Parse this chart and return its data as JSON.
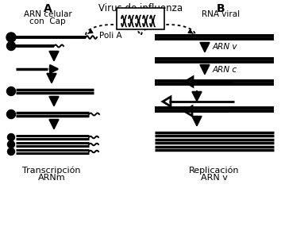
{
  "title_center": "Virus de influenza",
  "title_A": "A",
  "subtitle_A1": "ARN celular",
  "subtitle_A2": "con  Cap",
  "title_B": "B",
  "subtitle_B": "RNA viral",
  "label_poliA": "Poli A",
  "label_arnv": "ARN v",
  "label_arnc": "ARN c",
  "label_bottom_A1": "Transcripción",
  "label_bottom_A2": "ARNm",
  "label_bottom_B1": "Replicación",
  "label_bottom_B2": "ARN v",
  "bg_color": "#ffffff",
  "line_color": "#000000",
  "fig_width": 3.54,
  "fig_height": 3.05,
  "dpi": 100
}
